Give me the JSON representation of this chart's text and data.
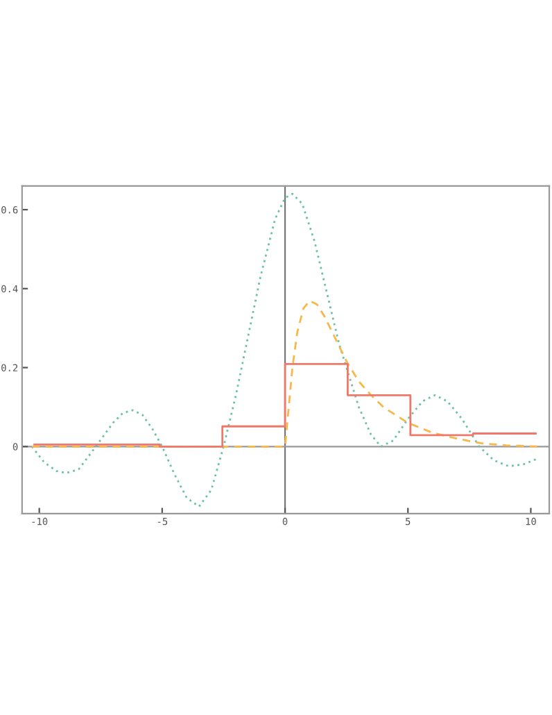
{
  "chart_data": {
    "type": "line",
    "xlim": [
      -10.7,
      10.75
    ],
    "ylim": [
      -0.17,
      0.66
    ],
    "xticks": [
      -10,
      -5,
      0,
      5,
      10
    ],
    "yticks": [
      0,
      0.2,
      0.4,
      0.6
    ],
    "grid": false,
    "legend": false,
    "ref_lines": [
      {
        "axis": "x",
        "value": 0,
        "color": "#777777"
      },
      {
        "axis": "y",
        "value": 0,
        "color": "#999999"
      }
    ],
    "series": [
      {
        "color": "#6cbfa8",
        "line_style": "dotted",
        "x": [
          -10.3,
          -9.8,
          -9.3,
          -8.9,
          -8.4,
          -7.7,
          -7.0,
          -6.6,
          -6.2,
          -5.8,
          -5.4,
          -5.0,
          -4.5,
          -4.0,
          -3.5,
          -3.0,
          -2.5,
          -2.0,
          -1.5,
          -1.0,
          -0.4,
          0.0,
          0.3,
          0.7,
          1.2,
          1.7,
          2.2,
          2.5,
          3.0,
          3.5,
          3.9,
          4.4,
          5.0,
          5.6,
          6.1,
          6.6,
          7.2,
          7.9,
          8.5,
          9.1,
          9.7,
          10.3
        ],
        "values": [
          0.0,
          -0.04,
          -0.062,
          -0.067,
          -0.058,
          0.0,
          0.06,
          0.085,
          0.092,
          0.08,
          0.045,
          0.0,
          -0.07,
          -0.13,
          -0.152,
          -0.11,
          0.0,
          0.13,
          0.28,
          0.43,
          0.577,
          0.63,
          0.64,
          0.615,
          0.52,
          0.39,
          0.26,
          0.2,
          0.1,
          0.03,
          0.0,
          0.015,
          0.07,
          0.115,
          0.13,
          0.115,
          0.07,
          0.0,
          -0.035,
          -0.05,
          -0.045,
          -0.03
        ]
      },
      {
        "color": "#f6b84a",
        "line_style": "dashed",
        "x": [
          -10.3,
          -5,
          0,
          0.15,
          0.3,
          0.5,
          0.75,
          1.0,
          1.3,
          1.6,
          2.0,
          2.5,
          3.0,
          3.5,
          4.0,
          5.0,
          6.0,
          7.0,
          8.0,
          9.0,
          10.3
        ],
        "values": [
          0,
          0,
          0,
          0.1,
          0.2,
          0.29,
          0.35,
          0.369,
          0.36,
          0.33,
          0.28,
          0.216,
          0.165,
          0.13,
          0.1,
          0.06,
          0.035,
          0.02,
          0.008,
          0.003,
          0
        ]
      },
      {
        "type": "step",
        "color": "#f07868",
        "line_style": "solid",
        "x": [
          -10.2,
          -7.65,
          -5.1,
          -2.55,
          0,
          2.55,
          5.1,
          7.65,
          10.2
        ],
        "values": [
          0.005,
          0.005,
          0,
          0.051,
          0.209,
          0.13,
          0.029,
          0.033,
          0.033
        ]
      }
    ]
  }
}
